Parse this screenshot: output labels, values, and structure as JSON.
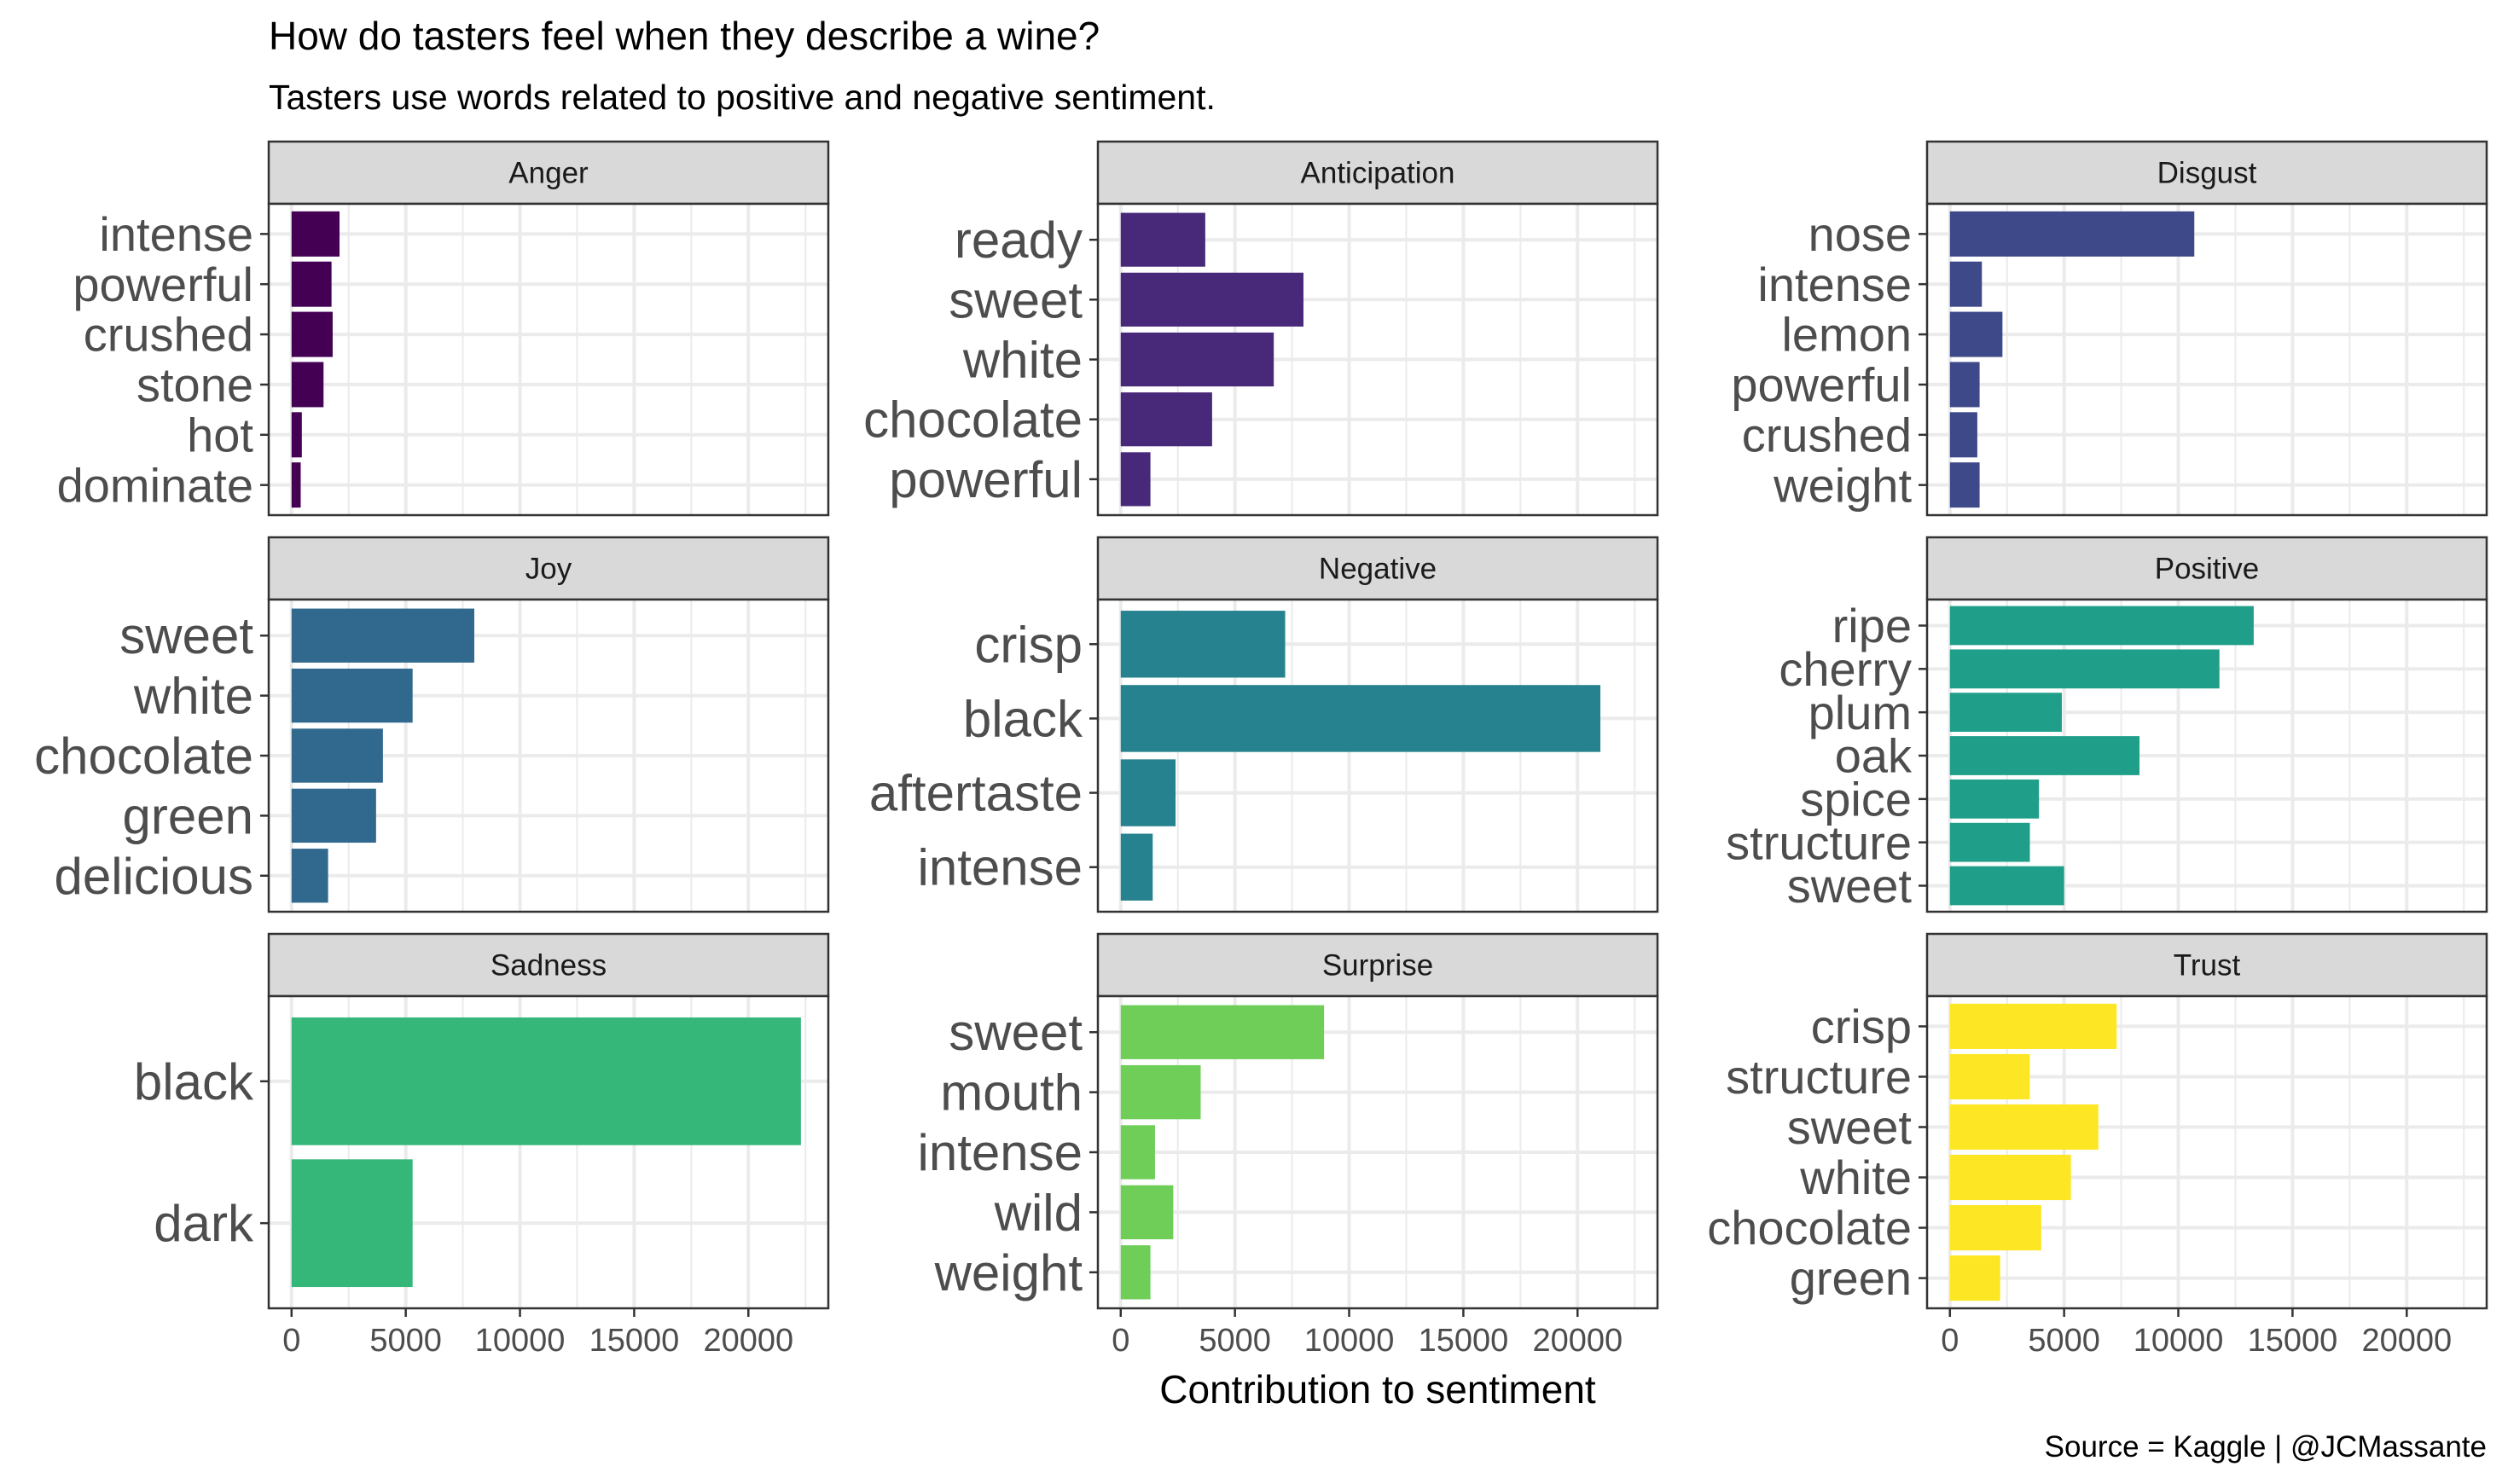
{
  "chart_data": {
    "type": "bar",
    "orientation": "horizontal",
    "title": "How do tasters feel when they describe a wine?",
    "subtitle": "Tasters use words related to positive and negative sentiment.",
    "xlabel": "Contribution to sentiment",
    "caption": "Source = Kaggle | @JCMassante",
    "xlim": [
      -1000,
      23500
    ],
    "x_ticks": [
      0,
      5000,
      10000,
      15000,
      20000
    ],
    "x_tick_labels": [
      "0",
      "5000",
      "10000",
      "15000",
      "20000"
    ],
    "grid": true,
    "facets": [
      {
        "name": "Anger",
        "color": "#440154",
        "categories": [
          "intense",
          "powerful",
          "crushed",
          "stone",
          "hot",
          "dominate"
        ],
        "values": [
          2100,
          1750,
          1800,
          1400,
          450,
          400
        ]
      },
      {
        "name": "Anticipation",
        "color": "#482878",
        "categories": [
          "ready",
          "sweet",
          "white",
          "chocolate",
          "powerful"
        ],
        "values": [
          3700,
          8000,
          6700,
          4000,
          1300
        ]
      },
      {
        "name": "Disgust",
        "color": "#3e4989",
        "categories": [
          "nose",
          "intense",
          "lemon",
          "powerful",
          "crushed",
          "weight"
        ],
        "values": [
          10700,
          1400,
          2300,
          1300,
          1200,
          1300
        ]
      },
      {
        "name": "Joy",
        "color": "#31688e",
        "categories": [
          "sweet",
          "white",
          "chocolate",
          "green",
          "delicious"
        ],
        "values": [
          8000,
          5300,
          4000,
          3700,
          1600
        ]
      },
      {
        "name": "Negative",
        "color": "#26828e",
        "categories": [
          "crisp",
          "black",
          "aftertaste",
          "intense"
        ],
        "values": [
          7200,
          21000,
          2400,
          1400
        ]
      },
      {
        "name": "Positive",
        "color": "#1f9e89",
        "categories": [
          "ripe",
          "cherry",
          "plum",
          "oak",
          "spice",
          "structure",
          "sweet"
        ],
        "values": [
          13300,
          11800,
          4900,
          8300,
          3900,
          3500,
          5000
        ]
      },
      {
        "name": "Sadness",
        "color": "#35b779",
        "categories": [
          "black",
          "dark"
        ],
        "values": [
          22300,
          5300
        ]
      },
      {
        "name": "Surprise",
        "color": "#6ece58",
        "categories": [
          "sweet",
          "mouth",
          "intense",
          "wild",
          "weight"
        ],
        "values": [
          8900,
          3500,
          1500,
          2300,
          1300
        ]
      },
      {
        "name": "Trust",
        "color": "#fde725",
        "categories": [
          "crisp",
          "structure",
          "sweet",
          "white",
          "chocolate",
          "green"
        ],
        "values": [
          7300,
          3500,
          6500,
          5300,
          4000,
          2200
        ]
      }
    ]
  }
}
